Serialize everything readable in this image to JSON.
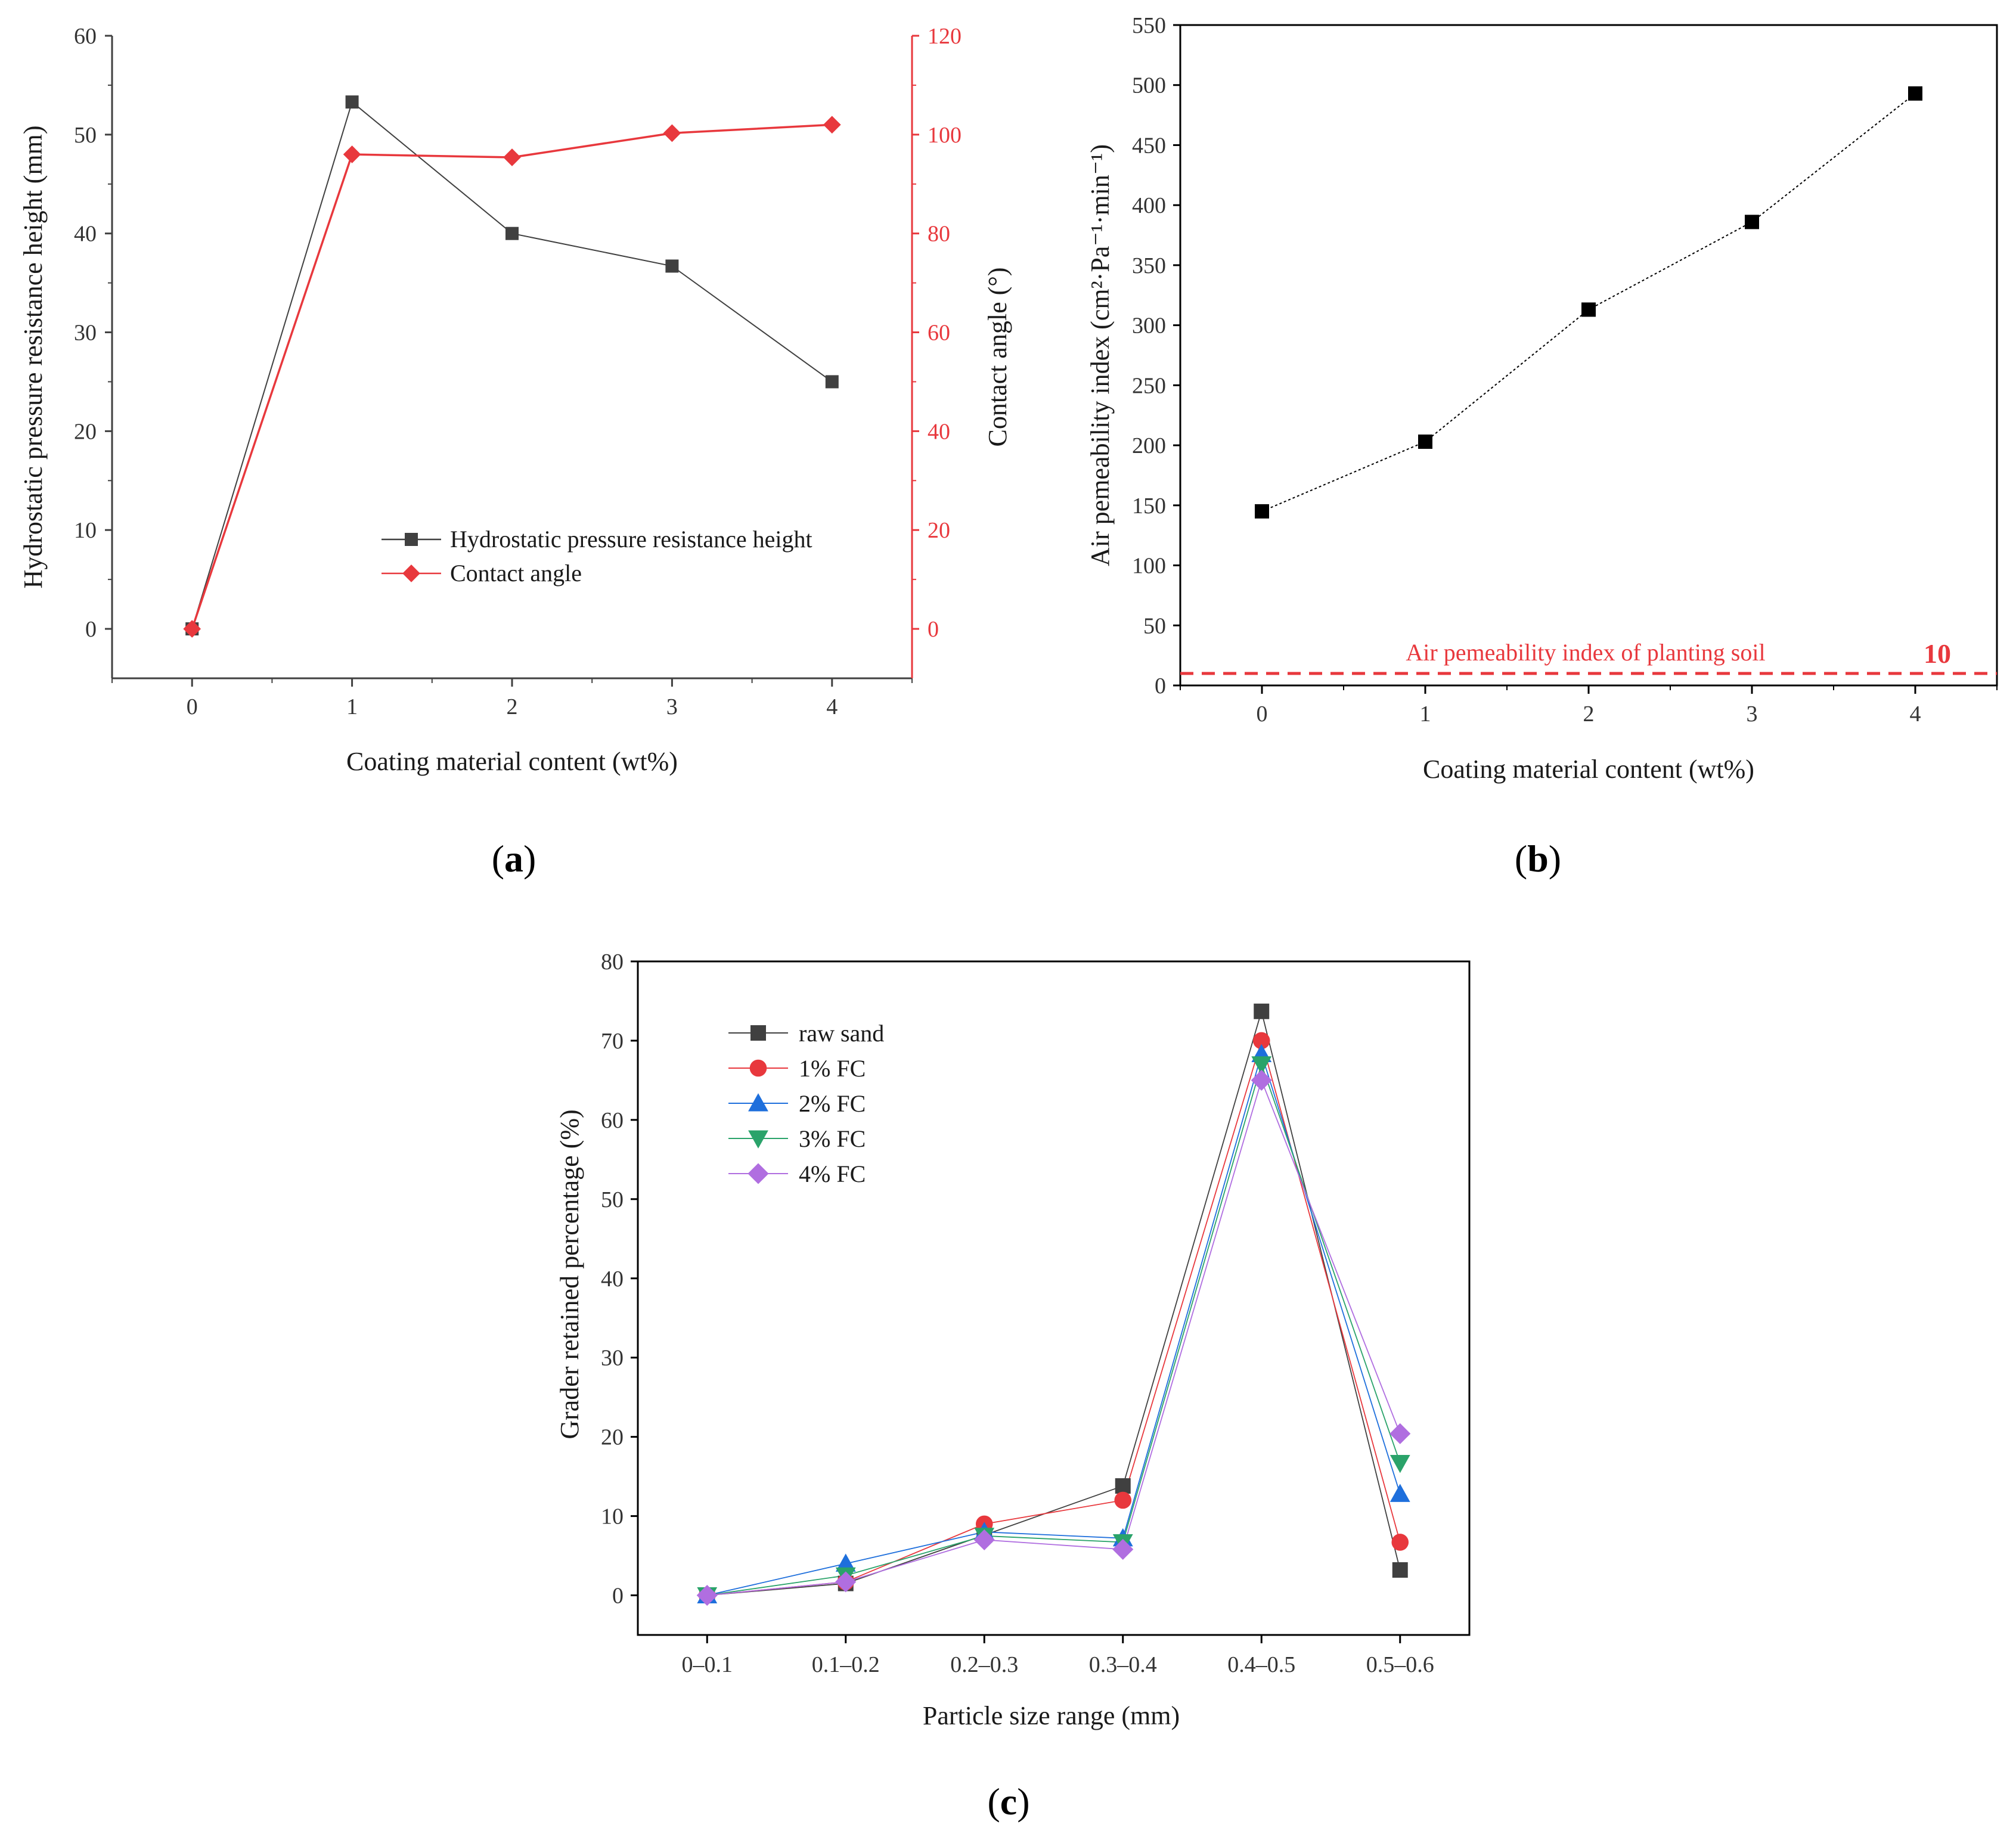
{
  "chart_data": [
    {
      "id": "a",
      "type": "line",
      "panel_label": "a",
      "xlabel": "Coating material content (wt%)",
      "ylabel": "Hydrostatic pressure resistance height (mm)",
      "y2label": "Contact angle (°)",
      "x": [
        0,
        1,
        2,
        3,
        4
      ],
      "xlim": [
        -0.5,
        4.5
      ],
      "ylim": [
        -5,
        60
      ],
      "y2lim": [
        -10,
        120
      ],
      "xticks": [
        "0",
        "1",
        "2",
        "3",
        "4"
      ],
      "yticks": [
        "0",
        "10",
        "20",
        "30",
        "40",
        "50",
        "60"
      ],
      "y2ticks": [
        "0",
        "20",
        "40",
        "60",
        "80",
        "100",
        "120"
      ],
      "series": [
        {
          "name": "Hydrostatic pressure resistance height",
          "axis": "left",
          "marker": "square",
          "color": "#404040",
          "values": [
            0,
            53.3,
            40.0,
            36.7,
            25.0
          ]
        },
        {
          "name": "Contact angle",
          "axis": "right",
          "marker": "diamond",
          "color": "#e8383d",
          "values": [
            0,
            96.0,
            95.4,
            100.3,
            102.0
          ]
        }
      ],
      "legend_position": "lower-right"
    },
    {
      "id": "b",
      "type": "line",
      "panel_label": "b",
      "xlabel": "Coating material content (wt%)",
      "ylabel": "Air pemeability index (cm²·Pa⁻¹·min⁻¹)",
      "x": [
        0,
        1,
        2,
        3,
        4
      ],
      "xlim": [
        -0.5,
        4.5
      ],
      "ylim": [
        0,
        550
      ],
      "xticks": [
        "0",
        "1",
        "2",
        "3",
        "4"
      ],
      "yticks": [
        "0",
        "50",
        "100",
        "150",
        "200",
        "250",
        "300",
        "350",
        "400",
        "450",
        "500",
        "550"
      ],
      "series": [
        {
          "name": "Air pemeability index",
          "marker": "square",
          "color": "#000000",
          "values": [
            145,
            203,
            313,
            386,
            493
          ]
        }
      ],
      "reference_line": {
        "value": 10,
        "label": "Air pemeability index of planting soil",
        "value_label": "10",
        "color": "#e8383d"
      }
    },
    {
      "id": "c",
      "type": "line",
      "panel_label": "c",
      "xlabel": "Particle size range (mm)",
      "ylabel": "Grader retained percentage (%)",
      "categories": [
        "0–0.1",
        "0.1–0.2",
        "0.2–0.3",
        "0.3–0.4",
        "0.4–0.5",
        "0.5–0.6"
      ],
      "ylim": [
        -5,
        80
      ],
      "yticks": [
        "0",
        "10",
        "20",
        "30",
        "40",
        "50",
        "60",
        "70",
        "80"
      ],
      "series": [
        {
          "name": "raw sand",
          "marker": "square",
          "color": "#404040",
          "values": [
            0,
            1.5,
            7.6,
            13.8,
            73.7,
            3.2
          ]
        },
        {
          "name": "1% FC",
          "marker": "circle",
          "color": "#e8383d",
          "values": [
            0,
            1.7,
            9.0,
            12.0,
            70.0,
            6.7
          ]
        },
        {
          "name": "2% FC",
          "marker": "triangle-up",
          "color": "#1e6fdc",
          "values": [
            0,
            4.0,
            8.0,
            7.2,
            68.3,
            12.8
          ]
        },
        {
          "name": "3% FC",
          "marker": "triangle-down",
          "color": "#2aa36a",
          "values": [
            0,
            2.5,
            7.5,
            6.7,
            67.0,
            16.7
          ]
        },
        {
          "name": "4% FC",
          "marker": "diamond",
          "color": "#b06ee0",
          "values": [
            0,
            1.7,
            7.0,
            5.8,
            65.0,
            20.4
          ]
        }
      ],
      "legend_position": "top-left"
    }
  ]
}
